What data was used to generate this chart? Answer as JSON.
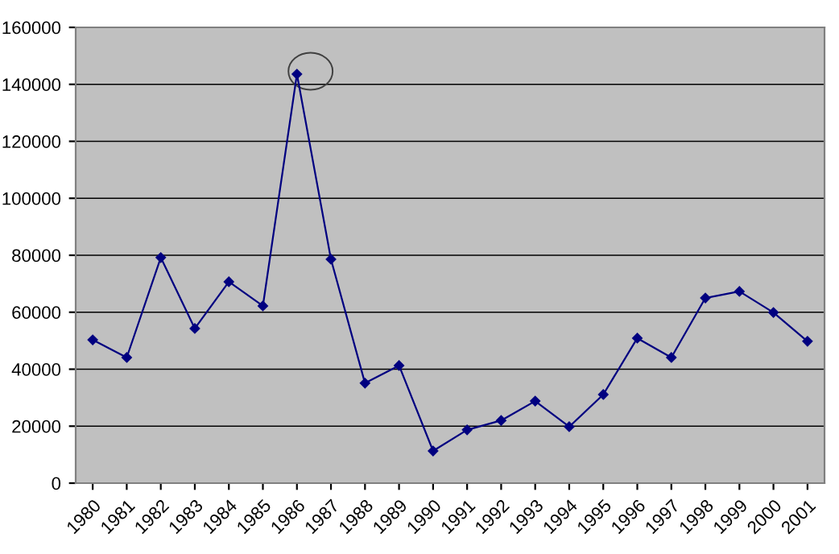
{
  "chart_data": {
    "type": "line",
    "categories": [
      "1980",
      "1981",
      "1982",
      "1983",
      "1984",
      "1985",
      "1986",
      "1987",
      "1988",
      "1989",
      "1990",
      "1991",
      "1992",
      "1993",
      "1994",
      "1995",
      "1996",
      "1997",
      "1998",
      "1999",
      "2000",
      "2001"
    ],
    "series": [
      {
        "color": "#000080",
        "values": [
          50300,
          44100,
          79200,
          54300,
          70700,
          62200,
          143600,
          78600,
          35100,
          41300,
          11300,
          18700,
          22000,
          28800,
          19800,
          31100,
          50900,
          44100,
          65000,
          67300,
          59900,
          49800
        ]
      }
    ],
    "ylim": [
      0,
      160000
    ],
    "yticks": [
      0,
      20000,
      40000,
      60000,
      80000,
      100000,
      120000,
      140000,
      160000
    ],
    "grid": "y",
    "marker": "diamond",
    "line_style": "solid"
  }
}
